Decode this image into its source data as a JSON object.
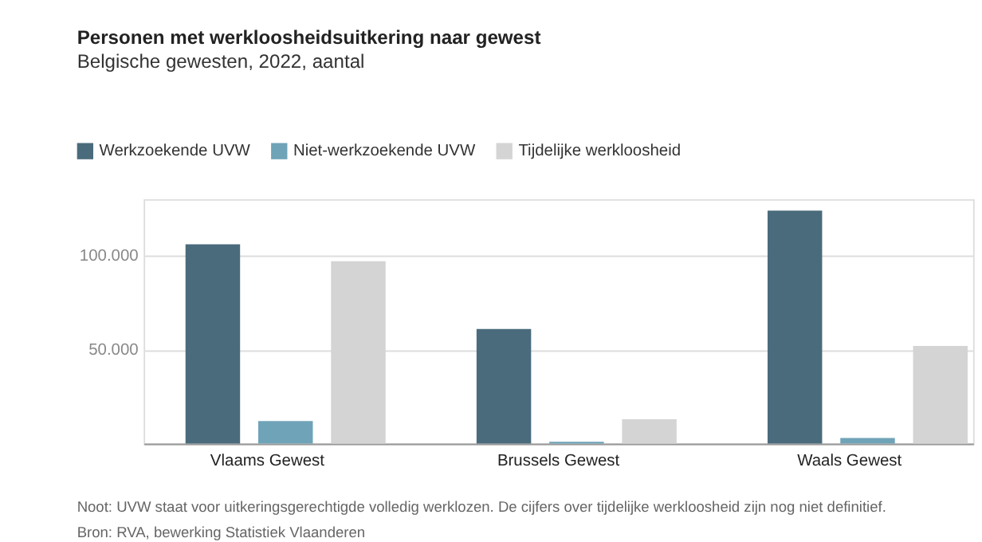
{
  "chart_data": {
    "type": "bar",
    "title": "Personen met werkloosheidsuitkering naar gewest",
    "subtitle": "Belgische gewesten, 2022, aantal",
    "categories": [
      "Vlaams Gewest",
      "Brussels Gewest",
      "Waals Gewest"
    ],
    "series": [
      {
        "name": "Werkzoekende UVW",
        "color": "#4a6b7c",
        "values": [
          106000,
          61000,
          124000
        ]
      },
      {
        "name": "Niet-werkzoekende UVW",
        "color": "#6fa3b8",
        "values": [
          12000,
          1000,
          3000
        ]
      },
      {
        "name": "Tijdelijke werkloosheid",
        "color": "#d4d4d4",
        "values": [
          97000,
          13000,
          52000
        ]
      }
    ],
    "ylim": [
      0,
      130000
    ],
    "yticks": [
      {
        "value": 0,
        "label": null
      },
      {
        "value": 50000,
        "label": "50.000"
      },
      {
        "value": 100000,
        "label": "100.000"
      }
    ],
    "grid": "y",
    "legend": "top left",
    "annotations": [
      "Noot: UVW staat voor uitkeringsgerechtigde volledig werklozen. De cijfers over tijdelijke werkloosheid zijn nog niet definitief.",
      "Bron: RVA, bewerking Statistiek Vlaanderen"
    ]
  }
}
